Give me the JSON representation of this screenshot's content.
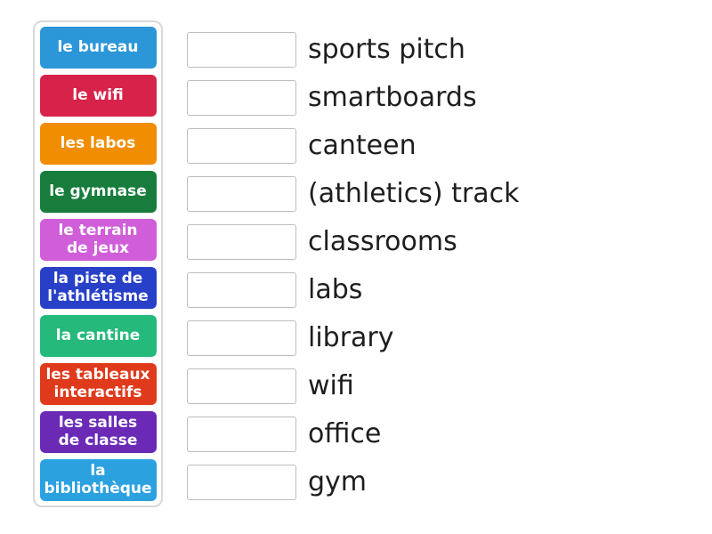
{
  "theme": {
    "background": "#ffffff",
    "panel_border": "#d9d9d9",
    "dropzone_border": "#bdbdbd",
    "definition_color": "#1e1e1e",
    "tile_text_color": "#ffffff"
  },
  "left_panel": {
    "tiles": [
      {
        "label": "le bureau",
        "color": "#2b97d8"
      },
      {
        "label": "le wifi",
        "color": "#d7234a"
      },
      {
        "label": "les labos",
        "color": "#f08d00"
      },
      {
        "label": "le gymnase",
        "color": "#187d3c"
      },
      {
        "label": "le terrain\nde jeux",
        "color": "#cf5ed8"
      },
      {
        "label": "la piste de\nl'athlétisme",
        "color": "#2840c8"
      },
      {
        "label": "la cantine",
        "color": "#25b97c"
      },
      {
        "label": "les tableaux\ninteractifs",
        "color": "#df3a1b"
      },
      {
        "label": "les salles\nde classe",
        "color": "#6a2ab6"
      },
      {
        "label": "la\nbibliothèque",
        "color": "#2ba1e0"
      }
    ]
  },
  "right_list": {
    "items": [
      {
        "label": "sports pitch"
      },
      {
        "label": "smartboards"
      },
      {
        "label": "canteen"
      },
      {
        "label": "(athletics) track"
      },
      {
        "label": "classrooms"
      },
      {
        "label": "labs"
      },
      {
        "label": "library"
      },
      {
        "label": "wifi"
      },
      {
        "label": "office"
      },
      {
        "label": "gym"
      }
    ]
  }
}
